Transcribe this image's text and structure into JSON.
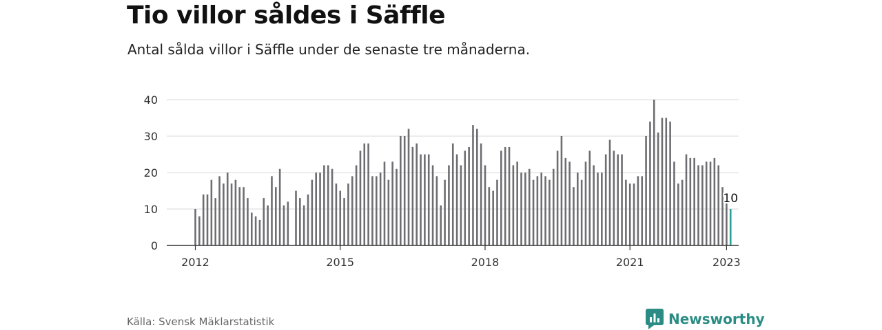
{
  "header": {
    "title": "Tio villor såldes i Säffle",
    "subtitle": "Antal sålda villor i Säffle under de senaste tre månaderna."
  },
  "footer": {
    "source": "Källa: Svensk Mäklarstatistik",
    "brand": "Newsworthy"
  },
  "colors": {
    "bar": "#6e6e72",
    "highlight": "#2a9d96",
    "grid": "#d8d8d8",
    "axis": "#333333",
    "brand": "#2a8c84"
  },
  "chart_data": {
    "type": "bar",
    "start": "2012-01",
    "values": [
      10,
      8,
      14,
      14,
      18,
      13,
      19,
      17,
      20,
      17,
      18,
      16,
      16,
      13,
      9,
      8,
      7,
      13,
      11,
      19,
      16,
      21,
      11,
      12,
      null,
      15,
      13,
      11,
      14,
      18,
      20,
      20,
      22,
      22,
      21,
      17,
      15,
      13,
      17,
      19,
      22,
      26,
      28,
      28,
      19,
      19,
      20,
      23,
      18,
      23,
      21,
      30,
      30,
      32,
      27,
      28,
      25,
      25,
      25,
      22,
      19,
      11,
      18,
      22,
      28,
      25,
      22,
      26,
      27,
      33,
      32,
      28,
      22,
      16,
      15,
      18,
      26,
      27,
      27,
      22,
      23,
      20,
      20,
      21,
      18,
      19,
      20,
      19,
      18,
      21,
      26,
      30,
      24,
      23,
      16,
      20,
      18,
      23,
      26,
      22,
      20,
      20,
      25,
      29,
      26,
      25,
      25,
      18,
      17,
      17,
      19,
      19,
      30,
      34,
      40,
      31,
      35,
      35,
      34,
      23,
      17,
      18,
      25,
      24,
      24,
      22,
      22,
      23,
      23,
      24,
      22,
      16,
      12,
      10
    ],
    "highlight_last": true,
    "last_label": "10",
    "yticks": [
      0,
      10,
      20,
      30,
      40
    ],
    "xticks": [
      "2012",
      "2015",
      "2018",
      "2021",
      "2023"
    ],
    "ylim": [
      0,
      40
    ],
    "grid": true,
    "legend": "none"
  }
}
